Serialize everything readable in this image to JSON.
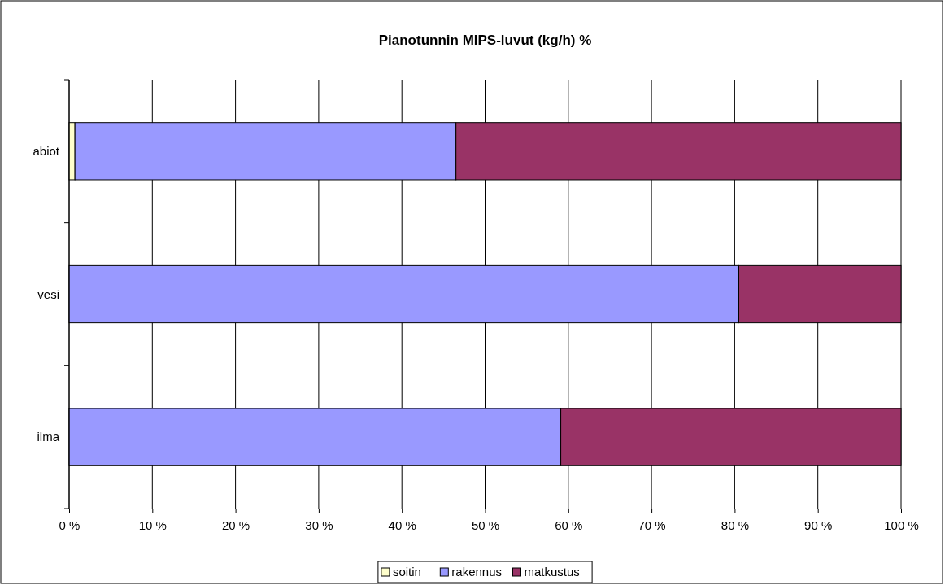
{
  "chart_data": {
    "type": "bar",
    "orientation": "horizontal",
    "stacked": true,
    "title": "Pianotunnin MIPS-luvut (kg/h) %",
    "categories": [
      "abiot",
      "vesi",
      "ilma"
    ],
    "series": [
      {
        "name": "soitin",
        "color": "#ffffcc",
        "values": [
          0.7,
          null,
          null
        ]
      },
      {
        "name": "rakennus",
        "color": "#9999ff",
        "values": [
          45.8,
          80.5,
          59.1
        ]
      },
      {
        "name": "matkustus",
        "color": "#993366",
        "values": [
          53.5,
          19.5,
          40.9
        ]
      }
    ],
    "xlim": [
      0,
      100
    ],
    "xticks": [
      {
        "value": 0,
        "label": "0 %"
      },
      {
        "value": 10,
        "label": "10 %"
      },
      {
        "value": 20,
        "label": "20 %"
      },
      {
        "value": 30,
        "label": "30 %"
      },
      {
        "value": 40,
        "label": "40 %"
      },
      {
        "value": 50,
        "label": "50 %"
      },
      {
        "value": 60,
        "label": "60 %"
      },
      {
        "value": 70,
        "label": "70 %"
      },
      {
        "value": 80,
        "label": "80 %"
      },
      {
        "value": 90,
        "label": "90 %"
      },
      {
        "value": 100,
        "label": "100 %"
      }
    ],
    "grid": "x",
    "legend": "bottom"
  }
}
